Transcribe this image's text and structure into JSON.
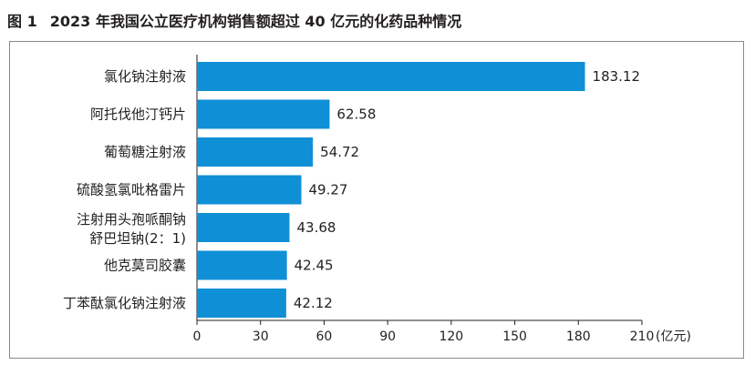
{
  "figure": {
    "number": "图 1",
    "title": "2023 年我国公立医疗机构销售额超过 40 亿元的化药品种情况"
  },
  "chart_data": {
    "type": "bar",
    "orientation": "horizontal",
    "categories": [
      [
        "氯化钠注射液"
      ],
      [
        "阿托伐他汀钙片"
      ],
      [
        "葡萄糖注射液"
      ],
      [
        "硫酸氢氯吡格雷片"
      ],
      [
        "注射用头孢哌酮钠",
        "舒巴坦钠(2：1)"
      ],
      [
        "他克莫司胶囊"
      ],
      [
        "丁苯酞氯化钠注射液"
      ]
    ],
    "values": [
      183.12,
      62.58,
      54.72,
      49.27,
      43.68,
      42.45,
      42.12
    ],
    "value_labels": [
      "183.12",
      "62.58",
      "54.72",
      "49.27",
      "43.68",
      "42.45",
      "42.12"
    ],
    "xlim": [
      0,
      210
    ],
    "xticks": [
      "0",
      "30",
      "60",
      "90",
      "120",
      "150",
      "180",
      "210"
    ],
    "xunit": "(亿元)",
    "bar_color": "#0f8fd6",
    "grid": false,
    "legend": "none"
  }
}
